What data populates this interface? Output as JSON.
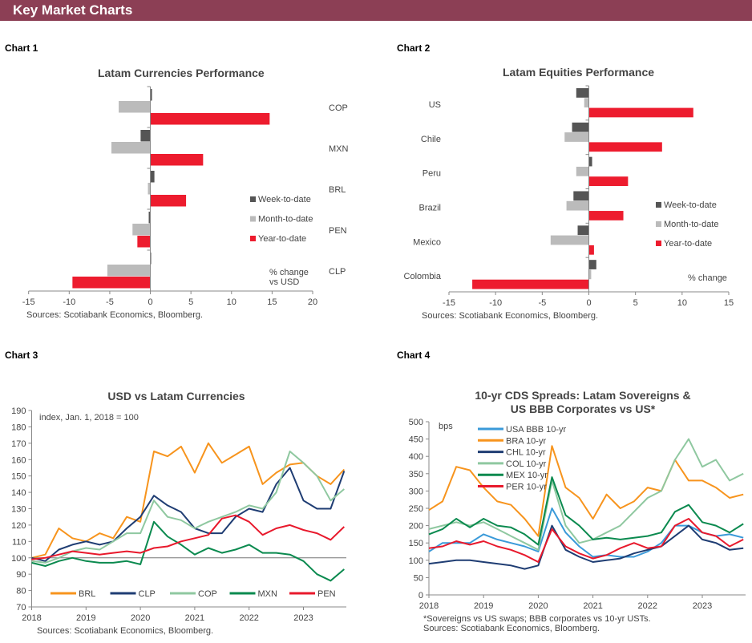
{
  "header": {
    "title": "Key Market Charts"
  },
  "chart_labels": [
    "Chart 1",
    "Chart 2",
    "Chart 3",
    "Chart 4"
  ],
  "colors": {
    "banner": "#8c3f55",
    "week": "#555555",
    "month": "#bbbbbb",
    "ytd": "#ed1c2e"
  },
  "chart_data": [
    {
      "type": "bar",
      "orientation": "horizontal",
      "title": "Latam Currencies Performance",
      "categories": [
        "COP",
        "MXN",
        "BRL",
        "PEN",
        "CLP"
      ],
      "series": [
        {
          "name": "Week-to-date",
          "color": "#555555",
          "values": [
            0.2,
            -1.2,
            0.5,
            -0.2,
            0.05
          ]
        },
        {
          "name": "Month-to-date",
          "color": "#bbbbbb",
          "values": [
            -3.9,
            -4.8,
            -0.3,
            -2.2,
            -5.3
          ]
        },
        {
          "name": "Year-to-date",
          "color": "#ed1c2e",
          "values": [
            14.7,
            6.5,
            4.4,
            -1.6,
            -9.6
          ]
        }
      ],
      "xlim": [
        -15,
        20
      ],
      "xticks": [
        "-15",
        "-10",
        "-5",
        "0",
        "5",
        "10",
        "15",
        "20"
      ],
      "unit_note": [
        "% change",
        "vs USD"
      ],
      "legend": "center-right",
      "source": "Sources: Scotiabank Economics, Bloomberg."
    },
    {
      "type": "bar",
      "orientation": "horizontal",
      "title": "Latam Equities Performance",
      "categories": [
        "US",
        "Chile",
        "Peru",
        "Brazil",
        "Mexico",
        "Colombia"
      ],
      "series": [
        {
          "name": "Week-to-date",
          "color": "#555555",
          "values": [
            -1.35,
            -1.8,
            0.35,
            -1.65,
            -1.2,
            0.8
          ]
        },
        {
          "name": "Month-to-date",
          "color": "#bbbbbb",
          "values": [
            -0.5,
            -2.6,
            -1.35,
            -2.4,
            -4.1,
            0.25
          ]
        },
        {
          "name": "Year-to-date",
          "color": "#ed1c2e",
          "values": [
            11.2,
            7.85,
            4.2,
            3.7,
            0.55,
            -12.5
          ]
        }
      ],
      "xlim": [
        -15,
        15
      ],
      "xticks": [
        "-15",
        "-10",
        "-5",
        "0",
        "5",
        "10",
        "15"
      ],
      "unit_note": [
        "% change"
      ],
      "legend": "center-right",
      "source": "Sources: Scotiabank Economics, Bloomberg."
    },
    {
      "type": "line",
      "title": "USD vs Latam Currencies",
      "annotation": "index, Jan. 1, 2018 = 100",
      "x": [
        "2018-01",
        "2018-04",
        "2018-07",
        "2018-10",
        "2019-01",
        "2019-04",
        "2019-07",
        "2019-10",
        "2020-01",
        "2020-04",
        "2020-07",
        "2020-10",
        "2021-01",
        "2021-04",
        "2021-07",
        "2021-10",
        "2022-01",
        "2022-04",
        "2022-07",
        "2022-10",
        "2023-01",
        "2023-04",
        "2023-07",
        "2023-10"
      ],
      "series": [
        {
          "name": "BRL",
          "color": "#f7941d",
          "values": [
            100,
            102,
            118,
            112,
            110,
            115,
            112,
            125,
            122,
            165,
            162,
            168,
            152,
            170,
            158,
            163,
            168,
            145,
            152,
            157,
            158,
            150,
            145,
            154
          ]
        },
        {
          "name": "CLP",
          "color": "#1f3d73",
          "values": [
            100,
            98,
            105,
            108,
            110,
            108,
            110,
            118,
            125,
            138,
            132,
            128,
            118,
            115,
            115,
            125,
            130,
            128,
            145,
            155,
            135,
            130,
            130,
            153
          ]
        },
        {
          "name": "COP",
          "color": "#8fc8a0",
          "values": [
            98,
            97,
            100,
            104,
            106,
            105,
            110,
            115,
            115,
            135,
            125,
            123,
            118,
            122,
            125,
            128,
            132,
            130,
            140,
            165,
            158,
            150,
            135,
            142
          ]
        },
        {
          "name": "MXN",
          "color": "#0b8a4f",
          "values": [
            97,
            95,
            98,
            100,
            98,
            97,
            97,
            98,
            96,
            122,
            113,
            108,
            102,
            106,
            103,
            105,
            108,
            103,
            103,
            102,
            98,
            90,
            86,
            93
          ]
        },
        {
          "name": "PEN",
          "color": "#e8192c",
          "values": [
            99,
            100,
            102,
            104,
            103,
            102,
            103,
            104,
            103,
            106,
            107,
            110,
            112,
            114,
            124,
            126,
            122,
            114,
            118,
            120,
            117,
            115,
            111,
            119
          ]
        }
      ],
      "ylim": [
        70,
        190
      ],
      "yticks": [
        "70",
        "80",
        "90",
        "100",
        "110",
        "120",
        "130",
        "140",
        "150",
        "160",
        "170",
        "180",
        "190"
      ],
      "xticks": [
        "2018",
        "2019",
        "2020",
        "2021",
        "2022",
        "2023"
      ],
      "reference_line": 100,
      "legend": "bottom-inside",
      "source": "Sources: Scotiabank Economics, Bloomberg."
    },
    {
      "type": "line",
      "title": [
        "10-yr CDS Spreads: Latam Sovereigns &",
        "US BBB Corporates vs US*"
      ],
      "ylabel": "bps",
      "x": [
        "2018-01",
        "2018-04",
        "2018-07",
        "2018-10",
        "2019-01",
        "2019-04",
        "2019-07",
        "2019-10",
        "2020-01",
        "2020-04",
        "2020-07",
        "2020-10",
        "2021-01",
        "2021-04",
        "2021-07",
        "2021-10",
        "2022-01",
        "2022-04",
        "2022-07",
        "2022-10",
        "2023-01",
        "2023-04",
        "2023-07",
        "2023-10"
      ],
      "series": [
        {
          "name": "USA BBB 10-yr",
          "color": "#3a9ad9",
          "values": [
            125,
            150,
            150,
            150,
            175,
            160,
            150,
            140,
            125,
            250,
            180,
            140,
            110,
            115,
            110,
            110,
            125,
            150,
            200,
            200,
            180,
            170,
            175,
            165
          ]
        },
        {
          "name": "BRA 10-yr",
          "color": "#f7941d",
          "values": [
            245,
            270,
            370,
            360,
            310,
            270,
            260,
            220,
            170,
            430,
            310,
            280,
            220,
            290,
            250,
            270,
            310,
            300,
            390,
            330,
            330,
            310,
            280,
            290
          ]
        },
        {
          "name": "CHL 10-yr",
          "color": "#1f3d73",
          "values": [
            90,
            95,
            100,
            100,
            95,
            90,
            85,
            75,
            85,
            200,
            130,
            110,
            95,
            100,
            105,
            120,
            130,
            140,
            170,
            200,
            160,
            150,
            130,
            135
          ]
        },
        {
          "name": "COL 10-yr",
          "color": "#8fc8a0",
          "values": [
            190,
            200,
            210,
            200,
            210,
            190,
            170,
            150,
            130,
            330,
            200,
            150,
            160,
            180,
            200,
            240,
            280,
            300,
            390,
            450,
            370,
            390,
            330,
            350
          ]
        },
        {
          "name": "MEX 10-yr",
          "color": "#0b8a4f",
          "values": [
            175,
            190,
            220,
            195,
            220,
            200,
            195,
            175,
            145,
            340,
            230,
            200,
            160,
            165,
            160,
            165,
            170,
            180,
            240,
            260,
            210,
            200,
            180,
            205
          ]
        },
        {
          "name": "PER 10-yr",
          "color": "#e8192c",
          "values": [
            135,
            140,
            155,
            145,
            155,
            140,
            130,
            115,
            95,
            190,
            140,
            120,
            105,
            115,
            135,
            150,
            135,
            140,
            200,
            220,
            180,
            170,
            140,
            160
          ]
        }
      ],
      "ylim": [
        0,
        500
      ],
      "yticks": [
        "0",
        "50",
        "100",
        "150",
        "200",
        "250",
        "300",
        "350",
        "400",
        "450",
        "500"
      ],
      "xticks": [
        "2018",
        "2019",
        "2020",
        "2021",
        "2022",
        "2023"
      ],
      "legend": "top-left",
      "footnote": "*Sovereigns vs US swaps; BBB corporates vs 10-yr USTs.",
      "source": "Sources: Scotiabank Economics, Bloomberg."
    }
  ]
}
